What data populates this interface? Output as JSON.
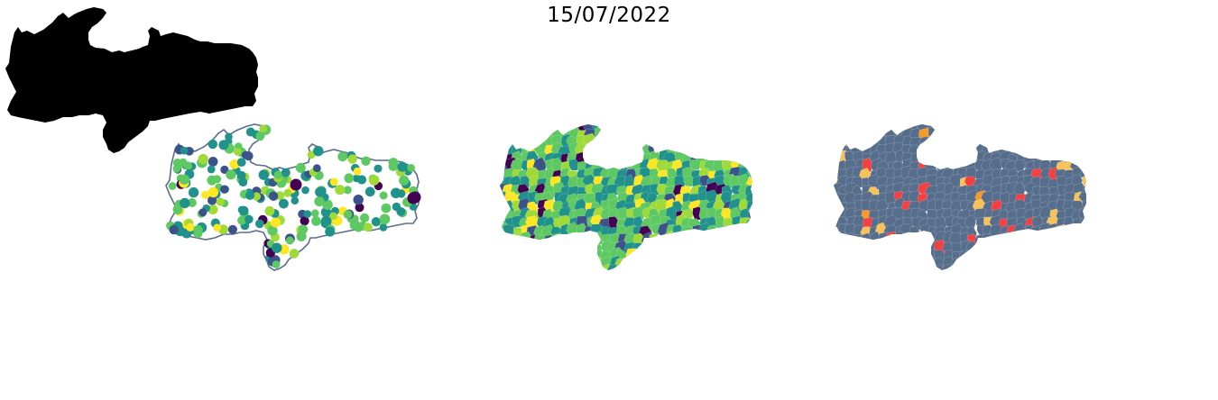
{
  "figure": {
    "title": "15/07/2022"
  },
  "colors": {
    "outline": "#5a6e8c",
    "viridis": [
      "#440154",
      "#3b528b",
      "#21918c",
      "#5ec962",
      "#a0da39",
      "#fde725"
    ],
    "categories": {
      "base": "#566e8c",
      "high": "#f44040",
      "medium": "#f59a2a",
      "low": "#f7c25a"
    }
  },
  "panels": [
    {
      "name": "points-map"
    },
    {
      "name": "choropleth-map"
    },
    {
      "name": "category-map"
    }
  ]
}
